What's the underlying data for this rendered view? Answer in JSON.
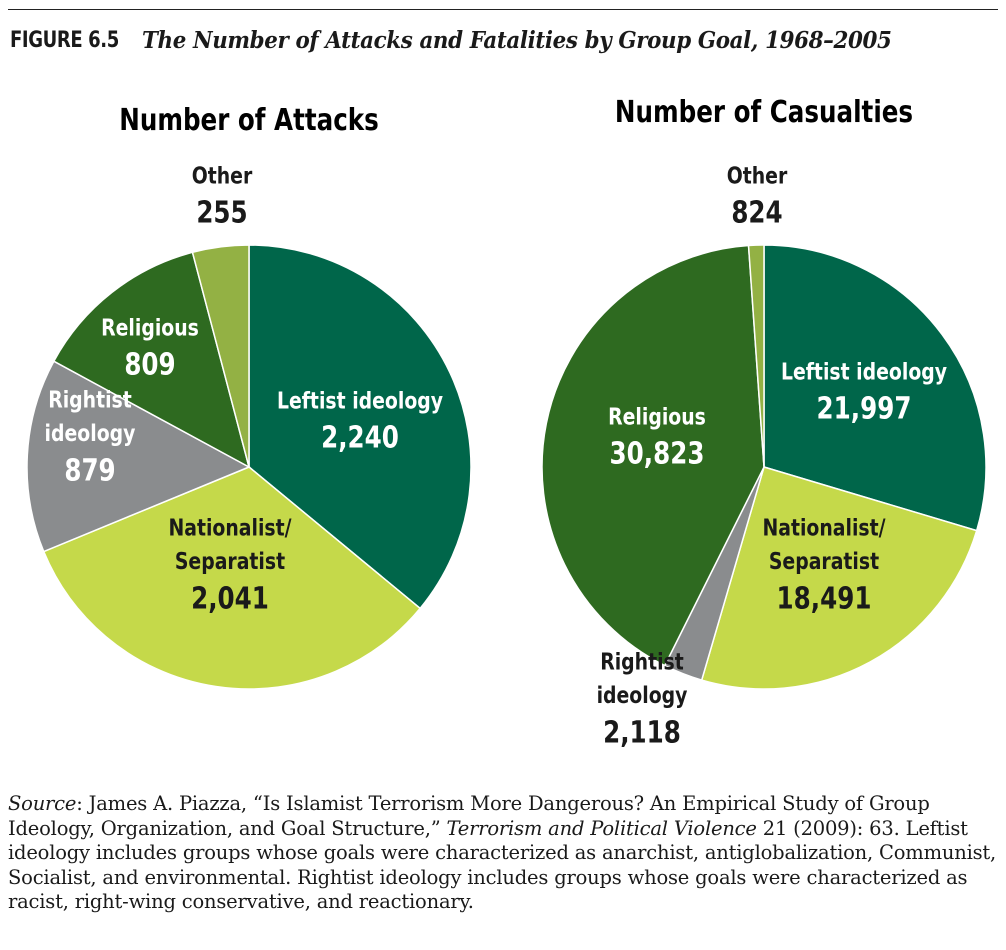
{
  "figure": {
    "label": "FIGURE 6.5",
    "title": "The Number of Attacks and Fatalities by Group Goal, 1968–2005"
  },
  "colors": {
    "leftist": "#00664a",
    "nationalist": "#c5d94a",
    "rightist": "#8a8c8e",
    "religious": "#2e6a20",
    "other": "#93b144",
    "label_light": "#ffffff",
    "label_dark": "#1a1a1a"
  },
  "chart_data": [
    {
      "type": "pie",
      "title": "Number of Attacks",
      "slices": [
        {
          "label": [
            "Leftist ideology"
          ],
          "value": 2240,
          "value_text": "2,240",
          "color": "#00664a",
          "text_color": "#ffffff"
        },
        {
          "label": [
            "Nationalist/",
            "Separatist"
          ],
          "value": 2041,
          "value_text": "2,041",
          "color": "#c5d94a",
          "text_color": "#1a1a1a"
        },
        {
          "label": [
            "Rightist",
            "ideology"
          ],
          "value": 879,
          "value_text": "879",
          "color": "#8a8c8e",
          "text_color": "#ffffff"
        },
        {
          "label": [
            "Religious"
          ],
          "value": 809,
          "value_text": "809",
          "color": "#2e6a20",
          "text_color": "#ffffff"
        },
        {
          "label": [
            "Other"
          ],
          "value": 255,
          "value_text": "255",
          "color": "#93b144",
          "text_color": "#1a1a1a"
        }
      ]
    },
    {
      "type": "pie",
      "title": "Number of Casualties",
      "slices": [
        {
          "label": [
            "Leftist ideology"
          ],
          "value": 21997,
          "value_text": "21,997",
          "color": "#00664a",
          "text_color": "#ffffff"
        },
        {
          "label": [
            "Nationalist/",
            "Separatist"
          ],
          "value": 18491,
          "value_text": "18,491",
          "color": "#c5d94a",
          "text_color": "#1a1a1a"
        },
        {
          "label": [
            "Rightist",
            "ideology"
          ],
          "value": 2118,
          "value_text": "2,118",
          "color": "#8a8c8e",
          "text_color": "#1a1a1a"
        },
        {
          "label": [
            "Religious"
          ],
          "value": 30823,
          "value_text": "30,823",
          "color": "#2e6a20",
          "text_color": "#ffffff"
        },
        {
          "label": [
            "Other"
          ],
          "value": 824,
          "value_text": "824",
          "color": "#93b144",
          "text_color": "#1a1a1a"
        }
      ]
    }
  ],
  "source": {
    "lead": "Source",
    "part1": ": James A. Piazza, “Is Islamist Terrorism More Dangerous? An Empirical Study of Group Ideology, Organization, and Goal Structure,” ",
    "journal": "Terrorism and Political Violence",
    "part2": " 21 (2009): 63. Leftist ideology includes groups whose goals were characterized as anarchist, antiglobalization, Communist, Socialist, and environmental. Rightist ideology includes groups whose goals were characterized as racist, right-wing conservative, and reactionary."
  }
}
